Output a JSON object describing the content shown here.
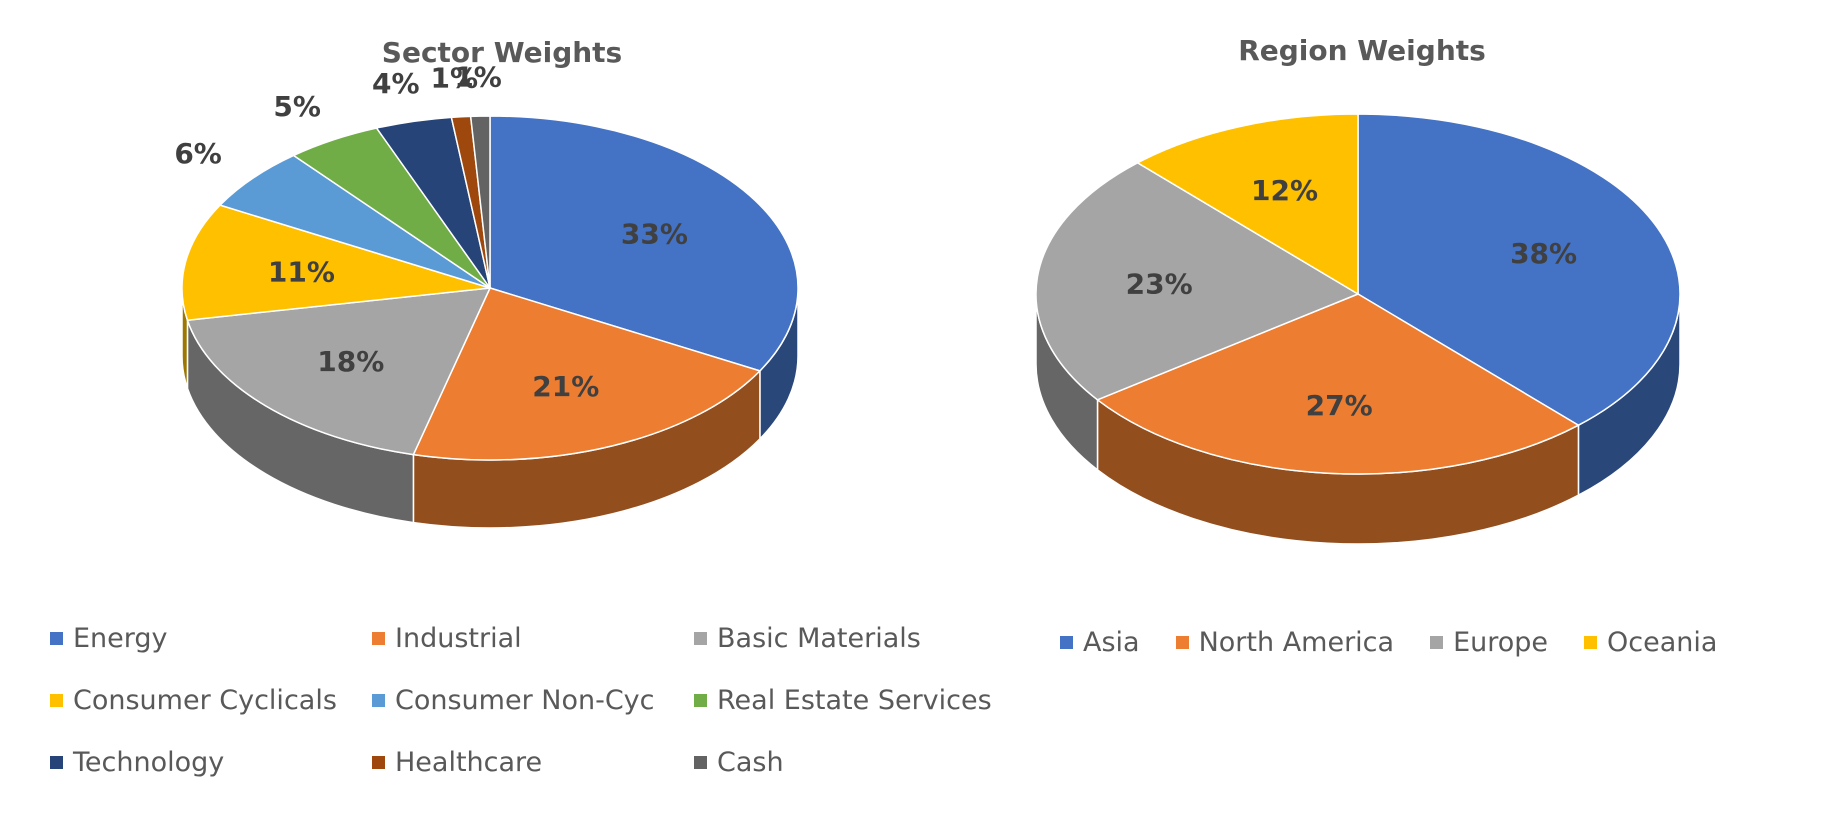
{
  "chart_data": [
    {
      "type": "pie",
      "style": "3d",
      "title": "Sector Weights",
      "legend": "bottom",
      "slices": [
        {
          "name": "Energy",
          "value": 33,
          "label": "33%",
          "color": "#4472C4"
        },
        {
          "name": "Industrial",
          "value": 21,
          "label": "21%",
          "color": "#ED7D31"
        },
        {
          "name": "Basic Materials",
          "value": 18,
          "label": "18%",
          "color": "#A5A5A5"
        },
        {
          "name": "Consumer Cyclicals",
          "value": 11,
          "label": "11%",
          "color": "#FFC000"
        },
        {
          "name": "Consumer Non-Cyc",
          "value": 6,
          "label": "6%",
          "color": "#5B9BD5"
        },
        {
          "name": "Real Estate Services",
          "value": 5,
          "label": "5%",
          "color": "#70AD47"
        },
        {
          "name": "Technology",
          "value": 4,
          "label": "4%",
          "color": "#264478"
        },
        {
          "name": "Healthcare",
          "value": 1,
          "label": "1%",
          "color": "#9E480E"
        },
        {
          "name": "Cash",
          "value": 1,
          "label": "1%",
          "color": "#636363"
        }
      ]
    },
    {
      "type": "pie",
      "style": "3d",
      "title": "Region Weights",
      "legend": "bottom",
      "slices": [
        {
          "name": "Asia",
          "value": 38,
          "label": "38%",
          "color": "#4472C4"
        },
        {
          "name": "North America",
          "value": 27,
          "label": "27%",
          "color": "#ED7D31"
        },
        {
          "name": "Europe",
          "value": 23,
          "label": "23%",
          "color": "#A5A5A5"
        },
        {
          "name": "Oceania",
          "value": 12,
          "label": "12%",
          "color": "#FFC000"
        }
      ]
    }
  ]
}
